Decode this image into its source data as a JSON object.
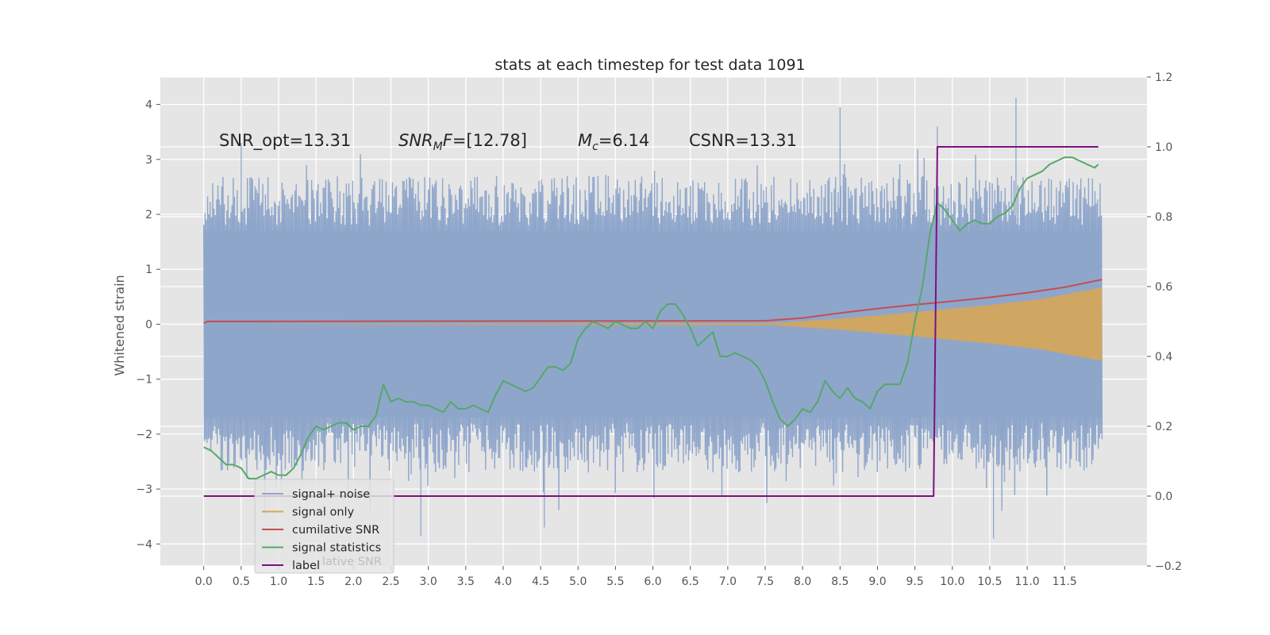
{
  "chart_data": {
    "type": "line",
    "title": "stats at each timestep for test data 1091",
    "ylabel": "Whitened strain",
    "xlabel": "",
    "xlim": [
      -0.58,
      12.6
    ],
    "ylim": [
      -4.4,
      4.5
    ],
    "ylim_right": [
      -0.2,
      1.2
    ],
    "x_ticks": [
      "0.0",
      "0.5",
      "1.0",
      "1.5",
      "2.0",
      "2.5",
      "3.0",
      "3.5",
      "4.0",
      "4.5",
      "5.0",
      "5.5",
      "6.0",
      "6.5",
      "7.0",
      "7.5",
      "8.0",
      "8.5",
      "9.0",
      "9.5",
      "10.0",
      "10.5",
      "11.0",
      "11.5"
    ],
    "y_ticks": [
      "4",
      "3",
      "2",
      "1",
      "0",
      "−1",
      "−2",
      "−3",
      "−4"
    ],
    "y_ticks_right": [
      "1.2",
      "1.0",
      "0.8",
      "0.6",
      "0.4",
      "0.2",
      "0.0",
      "−0.2"
    ],
    "grid": true,
    "legend_position": "lower-left",
    "annotations": {
      "snr_opt": "SNR_opt=13.31",
      "snr_mf_sym": "SNR",
      "snr_mf_sub": "M",
      "snr_mf_f": "F",
      "snr_mf_val": "=[12.78]",
      "mc_sym": "M",
      "mc_sub": "c",
      "mc_val": "=6.14",
      "csnr": "CSNR=13.31"
    },
    "legend": {
      "entries": [
        "signal+ noise",
        "signal only",
        "cumilative SNR",
        "signal statistics",
        "label"
      ],
      "ghost_text": "lative SNR"
    },
    "series": [
      {
        "name": "signal+ noise",
        "axis": "left",
        "color": "#8fa6cb",
        "noise": {
          "x_start": 0.0,
          "x_end": 12.0,
          "band_low": -2.0,
          "band_high": 2.0,
          "peak_max": 4.12,
          "peak_min": -3.9
        }
      },
      {
        "name": "signal only",
        "axis": "left",
        "color": "#d6a656",
        "envelope": {
          "x": [
            0.0,
            7.6,
            8.5,
            9.5,
            10.5,
            11.2,
            12.0
          ],
          "amp": [
            0.0,
            0.02,
            0.1,
            0.22,
            0.35,
            0.46,
            0.67
          ]
        }
      },
      {
        "name": "cumilative SNR",
        "axis": "right",
        "color": "#c44e52",
        "x": [
          0.0,
          0.05,
          7.5,
          8.0,
          8.5,
          9.0,
          9.5,
          10.0,
          10.5,
          11.0,
          11.5,
          12.0
        ],
        "y": [
          0.495,
          0.5,
          0.502,
          0.51,
          0.524,
          0.537,
          0.548,
          0.558,
          0.569,
          0.582,
          0.598,
          0.62
        ]
      },
      {
        "name": "signal statistics",
        "axis": "right",
        "color": "#55a868",
        "x": [
          0.0,
          0.1,
          0.2,
          0.3,
          0.4,
          0.5,
          0.6,
          0.7,
          0.8,
          0.9,
          1.0,
          1.1,
          1.2,
          1.3,
          1.4,
          1.5,
          1.6,
          1.7,
          1.8,
          1.9,
          2.0,
          2.1,
          2.2,
          2.3,
          2.4,
          2.5,
          2.6,
          2.7,
          2.8,
          2.9,
          3.0,
          3.1,
          3.2,
          3.3,
          3.4,
          3.5,
          3.6,
          3.7,
          3.8,
          3.9,
          4.0,
          4.1,
          4.2,
          4.3,
          4.4,
          4.5,
          4.6,
          4.7,
          4.8,
          4.9,
          5.0,
          5.1,
          5.2,
          5.3,
          5.4,
          5.5,
          5.6,
          5.7,
          5.8,
          5.9,
          6.0,
          6.1,
          6.2,
          6.3,
          6.4,
          6.5,
          6.6,
          6.7,
          6.8,
          6.9,
          7.0,
          7.1,
          7.2,
          7.3,
          7.4,
          7.5,
          7.6,
          7.7,
          7.8,
          7.9,
          8.0,
          8.1,
          8.2,
          8.3,
          8.4,
          8.5,
          8.6,
          8.7,
          8.8,
          8.9,
          9.0,
          9.1,
          9.2,
          9.3,
          9.4,
          9.5,
          9.6,
          9.7,
          9.8,
          9.9,
          10.0,
          10.1,
          10.2,
          10.3,
          10.4,
          10.5,
          10.6,
          10.7,
          10.8,
          10.9,
          11.0,
          11.1,
          11.2,
          11.3,
          11.4,
          11.5,
          11.6,
          11.7,
          11.8,
          11.9,
          11.95
        ],
        "y": [
          0.14,
          0.13,
          0.11,
          0.09,
          0.09,
          0.08,
          0.05,
          0.05,
          0.06,
          0.07,
          0.06,
          0.06,
          0.08,
          0.12,
          0.17,
          0.2,
          0.19,
          0.2,
          0.21,
          0.21,
          0.19,
          0.2,
          0.2,
          0.23,
          0.32,
          0.27,
          0.28,
          0.27,
          0.27,
          0.26,
          0.26,
          0.25,
          0.24,
          0.27,
          0.25,
          0.25,
          0.26,
          0.25,
          0.24,
          0.29,
          0.33,
          0.32,
          0.31,
          0.3,
          0.31,
          0.34,
          0.37,
          0.37,
          0.36,
          0.38,
          0.45,
          0.48,
          0.5,
          0.49,
          0.48,
          0.5,
          0.49,
          0.48,
          0.48,
          0.5,
          0.48,
          0.53,
          0.55,
          0.55,
          0.52,
          0.48,
          0.43,
          0.45,
          0.47,
          0.4,
          0.4,
          0.41,
          0.4,
          0.39,
          0.37,
          0.33,
          0.27,
          0.22,
          0.2,
          0.22,
          0.25,
          0.24,
          0.27,
          0.33,
          0.3,
          0.28,
          0.31,
          0.28,
          0.27,
          0.25,
          0.3,
          0.32,
          0.32,
          0.32,
          0.38,
          0.5,
          0.6,
          0.75,
          0.84,
          0.82,
          0.79,
          0.76,
          0.78,
          0.79,
          0.78,
          0.78,
          0.8,
          0.81,
          0.83,
          0.88,
          0.91,
          0.92,
          0.93,
          0.95,
          0.96,
          0.97,
          0.97,
          0.96,
          0.95,
          0.94,
          0.95
        ]
      },
      {
        "name": "label",
        "axis": "right",
        "color": "#7c1080",
        "x": [
          0.0,
          9.75,
          9.8,
          11.95
        ],
        "y": [
          0.0,
          0.0,
          1.0,
          1.0
        ]
      }
    ]
  }
}
